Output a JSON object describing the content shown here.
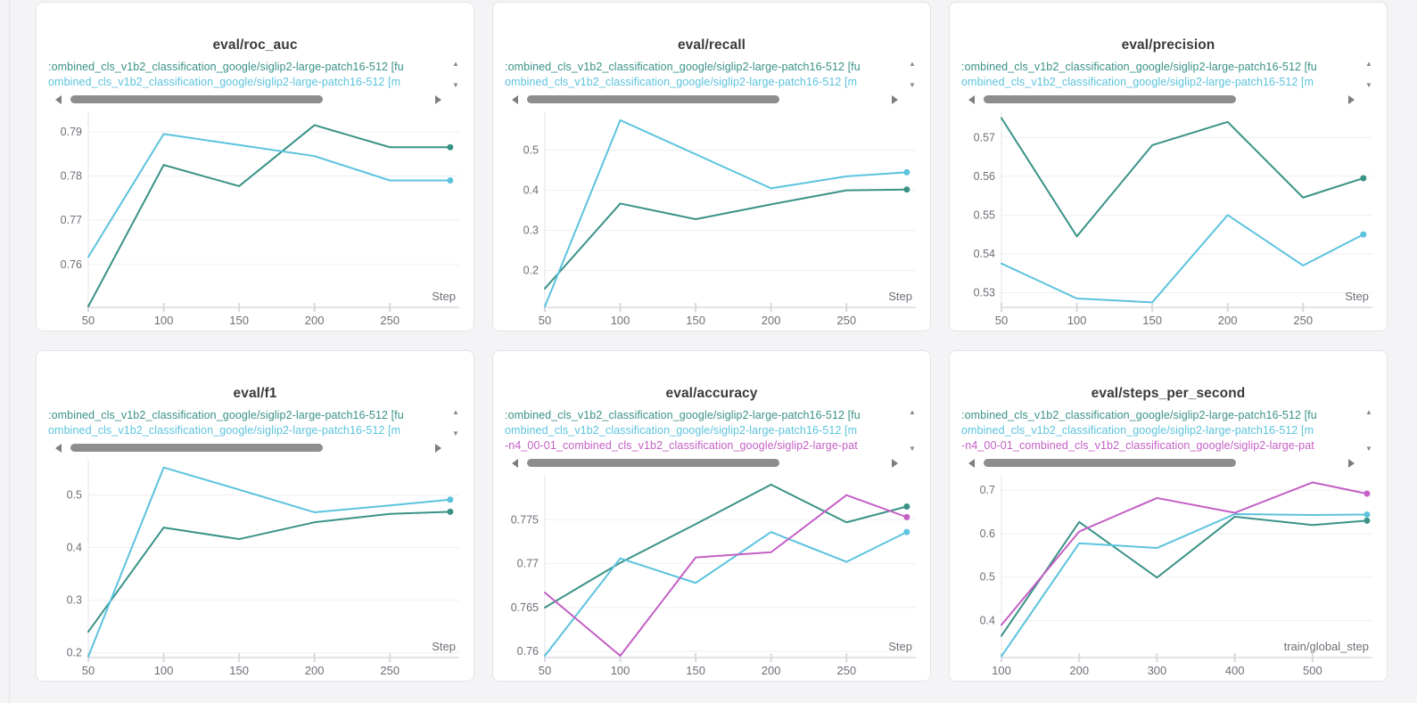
{
  "icons": {
    "legend_scroll_up": "▲",
    "legend_scroll_down": "▼"
  },
  "colors": {
    "teal": "#3a9287",
    "cyan": "#5bc3dd",
    "magenta": "#c45fc5",
    "axis_text": "#6e6e78",
    "grid_line": "#efeff3",
    "axis_line": "#e3e3e8",
    "title_text": "#3b3b3b",
    "card_background": "#ffffff",
    "page_background": "#f4f4f6",
    "scrollbar_thumb": "#8d8d90"
  },
  "chart_data": [
    {
      "type": "line",
      "title": "eval/roc_auc",
      "xlabel": "Step",
      "legend": [
        {
          "label": ":ombined_cls_v1b2_classification_google/siglip2-large-patch16-512 [fu",
          "color": "#3a9287"
        },
        {
          "label": "ombined_cls_v1b2_classification_google/siglip2-large-patch16-512 [m",
          "color": "#5bc3dd"
        }
      ],
      "x": [
        50,
        100,
        150,
        200,
        250,
        290
      ],
      "series": [
        {
          "name": "teal-run",
          "color": "#3a9287",
          "values": [
            0.7505,
            0.7825,
            0.7777,
            0.7915,
            0.7865,
            0.7865
          ]
        },
        {
          "name": "cyan-run",
          "color": "#5bc3dd",
          "values": [
            0.7617,
            0.7895,
            0.787,
            0.7845,
            0.779,
            0.779
          ]
        }
      ],
      "xticks": [
        50,
        100,
        150,
        200,
        250
      ],
      "yticks": [
        0.76,
        0.77,
        0.78,
        0.79
      ],
      "ytick_labels": [
        "0.76",
        "0.77",
        "0.78",
        "0.79"
      ],
      "xlim": [
        50,
        296
      ],
      "ylim": [
        0.7503,
        0.7938
      ],
      "grid": true,
      "legend_position": "top"
    },
    {
      "type": "line",
      "title": "eval/recall",
      "xlabel": "Step",
      "legend": [
        {
          "label": ":ombined_cls_v1b2_classification_google/siglip2-large-patch16-512 [fu",
          "color": "#3a9287"
        },
        {
          "label": "ombined_cls_v1b2_classification_google/siglip2-large-patch16-512 [m",
          "color": "#5bc3dd"
        }
      ],
      "x": [
        50,
        100,
        150,
        200,
        250,
        290
      ],
      "series": [
        {
          "name": "teal-run",
          "color": "#3a9287",
          "values": [
            0.155,
            0.367,
            0.328,
            0.365,
            0.4,
            0.402
          ]
        },
        {
          "name": "cyan-run",
          "color": "#5bc3dd",
          "values": [
            0.11,
            0.575,
            0.49,
            0.405,
            0.435,
            0.445
          ]
        }
      ],
      "xticks": [
        50,
        100,
        150,
        200,
        250
      ],
      "yticks": [
        0.2,
        0.3,
        0.4,
        0.5
      ],
      "ytick_labels": [
        "0.2",
        "0.3",
        "0.4",
        "0.5"
      ],
      "xlim": [
        50,
        296
      ],
      "ylim": [
        0.108,
        0.588
      ],
      "grid": true,
      "legend_position": "top"
    },
    {
      "type": "line",
      "title": "eval/precision",
      "xlabel": "Step",
      "legend": [
        {
          "label": ":ombined_cls_v1b2_classification_google/siglip2-large-patch16-512 [fu",
          "color": "#3a9287"
        },
        {
          "label": "ombined_cls_v1b2_classification_google/siglip2-large-patch16-512 [m",
          "color": "#5bc3dd"
        }
      ],
      "x": [
        50,
        100,
        150,
        200,
        250,
        290
      ],
      "series": [
        {
          "name": "teal-run",
          "color": "#3a9287",
          "values": [
            0.575,
            0.5445,
            0.568,
            0.574,
            0.5545,
            0.5595
          ]
        },
        {
          "name": "cyan-run",
          "color": "#5bc3dd",
          "values": [
            0.5375,
            0.5285,
            0.5275,
            0.55,
            0.537,
            0.545
          ]
        }
      ],
      "xticks": [
        50,
        100,
        150,
        200,
        250
      ],
      "yticks": [
        0.53,
        0.54,
        0.55,
        0.56,
        0.57
      ],
      "ytick_labels": [
        "0.53",
        "0.54",
        "0.55",
        "0.56",
        "0.57"
      ],
      "xlim": [
        50,
        296
      ],
      "ylim": [
        0.5262,
        0.5758
      ],
      "grid": true,
      "legend_position": "top"
    },
    {
      "type": "line",
      "title": "eval/f1",
      "xlabel": "Step",
      "legend": [
        {
          "label": ":ombined_cls_v1b2_classification_google/siglip2-large-patch16-512 [fu",
          "color": "#3a9287"
        },
        {
          "label": "ombined_cls_v1b2_classification_google/siglip2-large-patch16-512 [m",
          "color": "#5bc3dd"
        }
      ],
      "x": [
        50,
        100,
        150,
        200,
        250,
        290
      ],
      "series": [
        {
          "name": "teal-run",
          "color": "#3a9287",
          "values": [
            0.24,
            0.438,
            0.416,
            0.448,
            0.464,
            0.468
          ]
        },
        {
          "name": "cyan-run",
          "color": "#5bc3dd",
          "values": [
            0.193,
            0.552,
            0.51,
            0.467,
            0.48,
            0.491
          ]
        }
      ],
      "xticks": [
        50,
        100,
        150,
        200,
        250
      ],
      "yticks": [
        0.2,
        0.3,
        0.4,
        0.5
      ],
      "ytick_labels": [
        "0.2",
        "0.3",
        "0.4",
        "0.5"
      ],
      "xlim": [
        50,
        296
      ],
      "ylim": [
        0.191,
        0.56
      ],
      "grid": true,
      "legend_position": "top"
    },
    {
      "type": "line",
      "title": "eval/accuracy",
      "xlabel": "Step",
      "legend": [
        {
          "label": ":ombined_cls_v1b2_classification_google/siglip2-large-patch16-512 [fu",
          "color": "#3a9287"
        },
        {
          "label": "ombined_cls_v1b2_classification_google/siglip2-large-patch16-512 [m",
          "color": "#5bc3dd"
        },
        {
          "label": "-n4_00-01_combined_cls_v1b2_classification_google/siglip2-large-pat",
          "color": "#c45fc5"
        }
      ],
      "x": [
        50,
        100,
        150,
        200,
        250,
        290
      ],
      "series": [
        {
          "name": "teal-run",
          "color": "#3a9287",
          "values": [
            0.765,
            0.7701,
            0.7745,
            0.779,
            0.7747,
            0.7765
          ]
        },
        {
          "name": "cyan-run",
          "color": "#5bc3dd",
          "values": [
            0.7595,
            0.7706,
            0.7678,
            0.7736,
            0.7702,
            0.7736
          ]
        },
        {
          "name": "magenta-run",
          "color": "#c45fc5",
          "values": [
            0.7667,
            0.7595,
            0.7707,
            0.7713,
            0.7778,
            0.7753
          ]
        }
      ],
      "xticks": [
        50,
        100,
        150,
        200,
        250
      ],
      "yticks": [
        0.76,
        0.765,
        0.77,
        0.775
      ],
      "ytick_labels": [
        "0.76",
        "0.765",
        "0.77",
        "0.775"
      ],
      "xlim": [
        50,
        296
      ],
      "ylim": [
        0.7593,
        0.7797
      ],
      "grid": true,
      "legend_position": "top"
    },
    {
      "type": "line",
      "title": "eval/steps_per_second",
      "xlabel": "train/global_step",
      "legend": [
        {
          "label": ":ombined_cls_v1b2_classification_google/siglip2-large-patch16-512 [fu",
          "color": "#3a9287"
        },
        {
          "label": "ombined_cls_v1b2_classification_google/siglip2-large-patch16-512 [m",
          "color": "#5bc3dd"
        },
        {
          "label": "-n4_00-01_combined_cls_v1b2_classification_google/siglip2-large-pat",
          "color": "#c45fc5"
        }
      ],
      "x": [
        100,
        200,
        300,
        400,
        500,
        570
      ],
      "series": [
        {
          "name": "teal-run",
          "color": "#3a9287",
          "values": [
            0.365,
            0.627,
            0.499,
            0.639,
            0.62,
            0.63
          ]
        },
        {
          "name": "cyan-run",
          "color": "#5bc3dd",
          "values": [
            0.318,
            0.578,
            0.567,
            0.645,
            0.643,
            0.644
          ]
        },
        {
          "name": "magenta-run",
          "color": "#c45fc5",
          "values": [
            0.39,
            0.605,
            0.682,
            0.648,
            0.718,
            0.692
          ]
        }
      ],
      "xticks": [
        100,
        200,
        300,
        400,
        500
      ],
      "yticks": [
        0.4,
        0.5,
        0.6,
        0.7
      ],
      "ytick_labels": [
        "0.4",
        "0.5",
        "0.6",
        "0.7"
      ],
      "xlim": [
        100,
        577
      ],
      "ylim": [
        0.315,
        0.727
      ],
      "grid": true,
      "legend_position": "top"
    }
  ]
}
